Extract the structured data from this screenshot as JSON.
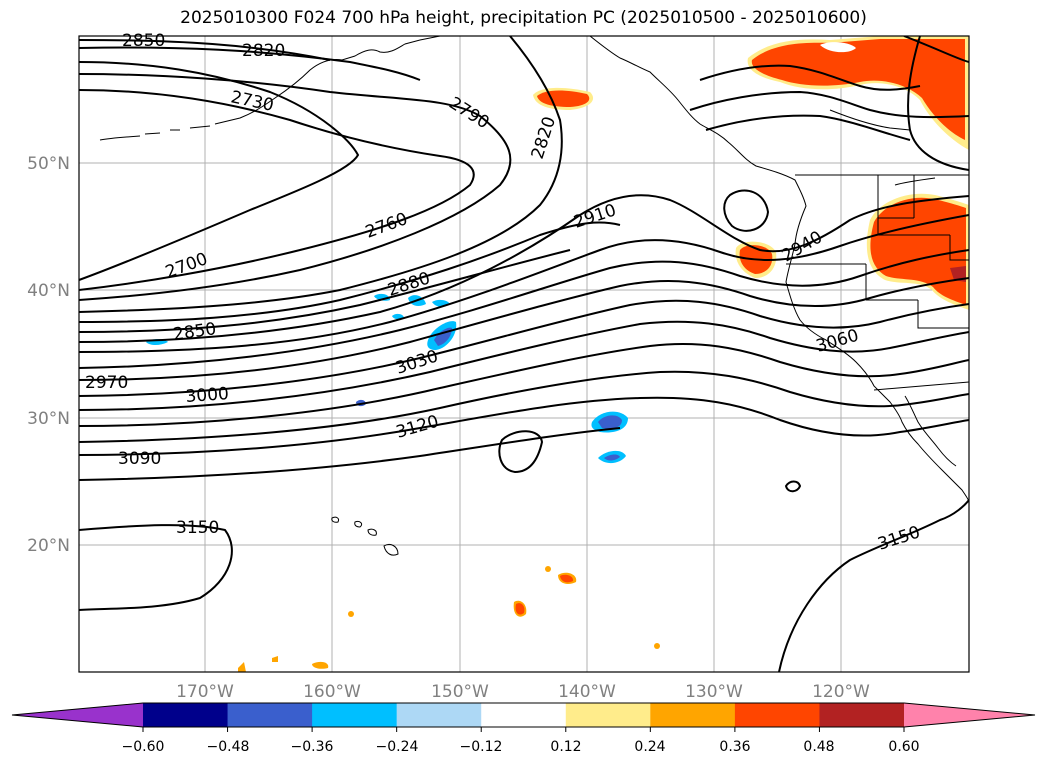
{
  "title": "2025010300 F024 700 hPa height, precipitation PC (2025010500 - 2025010600)",
  "map": {
    "lat_labels": [
      "50°N",
      "40°N",
      "30°N",
      "20°N"
    ],
    "lon_labels": [
      "170°W",
      "160°W",
      "150°W",
      "140°W",
      "130°W",
      "120°W"
    ],
    "grid": true
  },
  "contour_labels": [
    "2850",
    "2820",
    "2730",
    "2790",
    "2820",
    "2760",
    "2910",
    "2700",
    "2880",
    "2940",
    "2850",
    "3030",
    "3060",
    "2970",
    "3000",
    "3120",
    "3090",
    "3150",
    "3150"
  ],
  "colorbar": {
    "ticks": [
      "−0.60",
      "−0.48",
      "−0.36",
      "−0.24",
      "−0.12",
      "0.12",
      "0.24",
      "0.36",
      "0.48",
      "0.60"
    ],
    "colors": [
      "#9932cc",
      "#00008b",
      "#3a5fcd",
      "#00bfff",
      "#add8f5",
      "#ffffff",
      "#ffec8b",
      "#ffa500",
      "#ff4500",
      "#b22222",
      "#ff82ab"
    ],
    "extend": "both"
  }
}
